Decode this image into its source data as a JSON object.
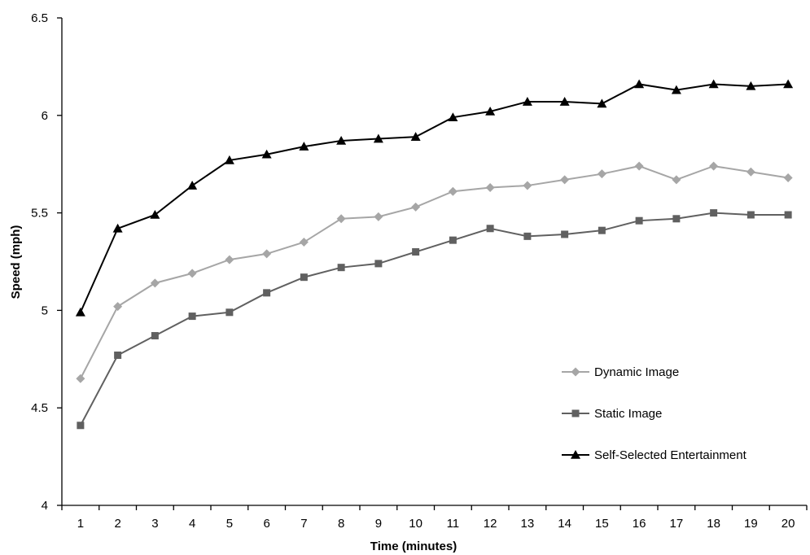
{
  "chart_data": {
    "type": "line",
    "title": "",
    "xlabel": "Time (minutes)",
    "ylabel": "Speed (mph)",
    "x": [
      1,
      2,
      3,
      4,
      5,
      6,
      7,
      8,
      9,
      10,
      11,
      12,
      13,
      14,
      15,
      16,
      17,
      18,
      19,
      20
    ],
    "ylim": [
      4,
      6.5
    ],
    "yticks": [
      "4",
      "4.5",
      "5",
      "5.5",
      "6",
      "6.5"
    ],
    "ytick_values": [
      4,
      4.5,
      5,
      5.5,
      6,
      6.5
    ],
    "grid": false,
    "legend_position": "lower-right",
    "series": [
      {
        "name": "Dynamic Image",
        "marker": "diamond",
        "color": "#a6a6a6",
        "values": [
          4.65,
          5.02,
          5.14,
          5.19,
          5.26,
          5.29,
          5.35,
          5.47,
          5.48,
          5.53,
          5.61,
          5.63,
          5.64,
          5.67,
          5.7,
          5.74,
          5.67,
          5.74,
          5.71,
          5.68
        ]
      },
      {
        "name": "Static Image",
        "marker": "square",
        "color": "#606060",
        "values": [
          4.41,
          4.77,
          4.87,
          4.97,
          4.99,
          5.09,
          5.17,
          5.22,
          5.24,
          5.3,
          5.36,
          5.42,
          5.38,
          5.39,
          5.41,
          5.46,
          5.47,
          5.5,
          5.49,
          5.49
        ]
      },
      {
        "name": "Self-Selected Entertainment",
        "marker": "triangle",
        "color": "#000000",
        "values": [
          4.99,
          5.42,
          5.49,
          5.64,
          5.77,
          5.8,
          5.84,
          5.87,
          5.88,
          5.89,
          5.99,
          6.02,
          6.07,
          6.07,
          6.06,
          6.16,
          6.13,
          6.16,
          6.15,
          6.16
        ]
      }
    ]
  }
}
